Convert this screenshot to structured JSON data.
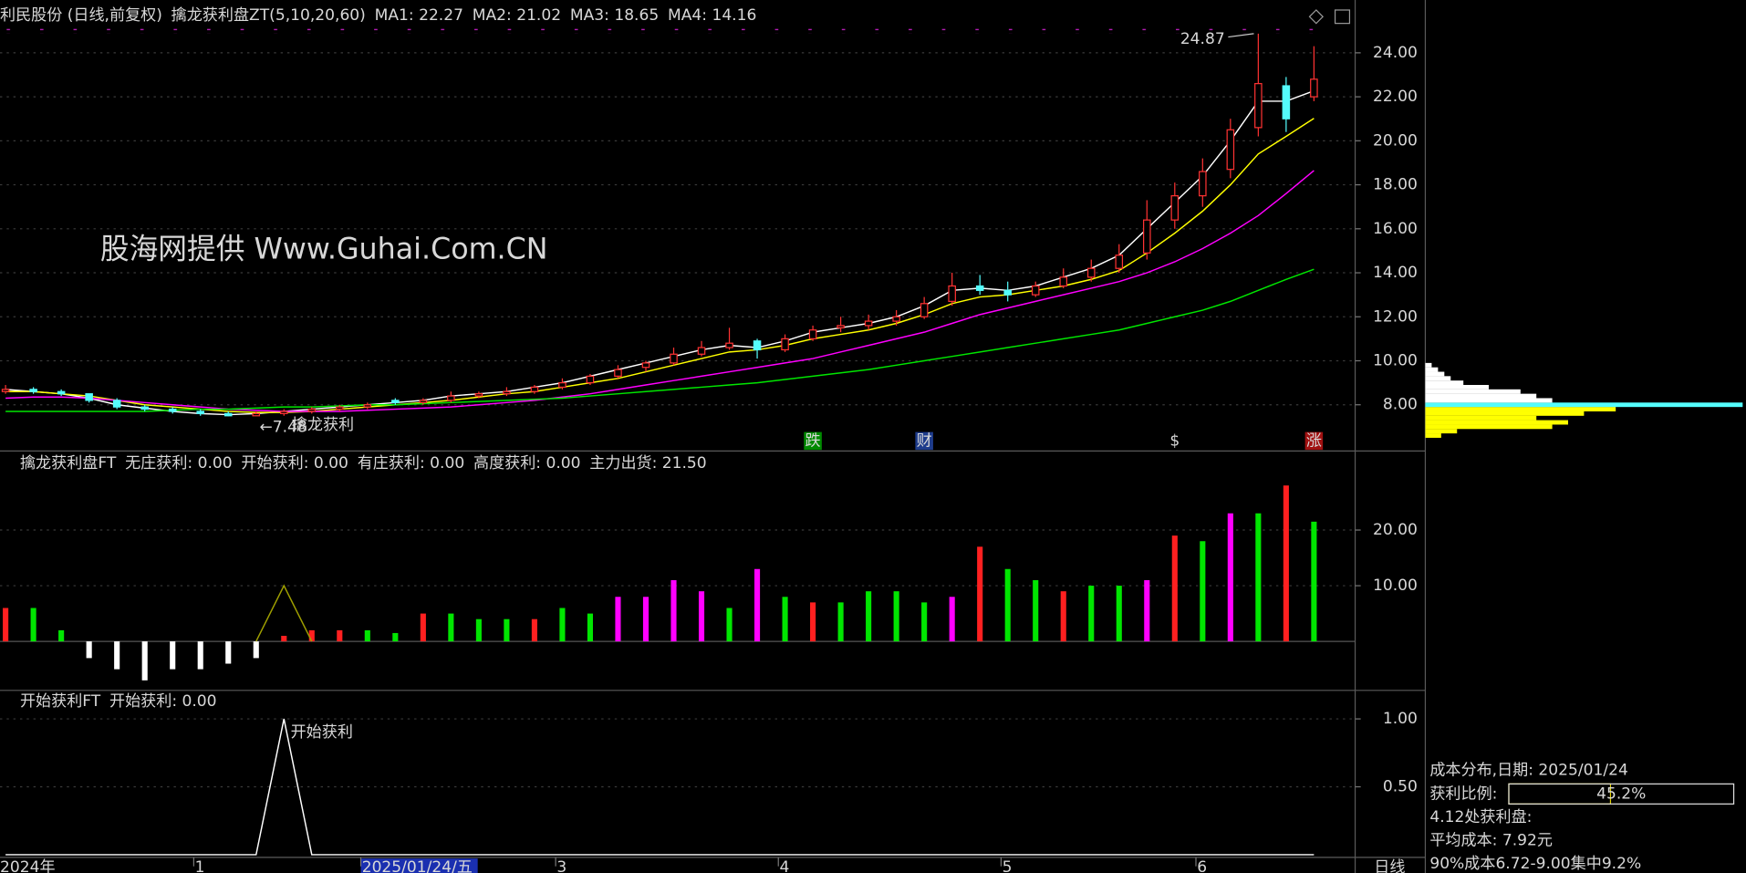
{
  "chart_data": [
    {
      "type": "candlestick",
      "title": "利民股份 (日线,前复权)",
      "indicator": "擒龙获利盘ZT(5,10,20,60)",
      "ohlc": [
        [
          8.6,
          8.9,
          8.5,
          8.7
        ],
        [
          8.7,
          8.8,
          8.5,
          8.6
        ],
        [
          8.6,
          8.7,
          8.4,
          8.5
        ],
        [
          8.5,
          8.5,
          8.1,
          8.2
        ],
        [
          8.2,
          8.3,
          7.8,
          7.9
        ],
        [
          7.9,
          8.0,
          7.7,
          7.8
        ],
        [
          7.8,
          7.9,
          7.6,
          7.7
        ],
        [
          7.7,
          7.8,
          7.5,
          7.6
        ],
        [
          7.6,
          7.7,
          7.48,
          7.5
        ],
        [
          7.5,
          7.7,
          7.5,
          7.6
        ],
        [
          7.6,
          7.8,
          7.5,
          7.7
        ],
        [
          7.7,
          7.9,
          7.6,
          7.8
        ],
        [
          7.8,
          8.0,
          7.7,
          7.9
        ],
        [
          7.9,
          8.1,
          7.8,
          8.0
        ],
        [
          8.2,
          8.3,
          8.0,
          8.1
        ],
        [
          8.1,
          8.3,
          8.0,
          8.2
        ],
        [
          8.2,
          8.6,
          8.1,
          8.4
        ],
        [
          8.4,
          8.6,
          8.3,
          8.5
        ],
        [
          8.5,
          8.8,
          8.4,
          8.6
        ],
        [
          8.6,
          8.9,
          8.5,
          8.8
        ],
        [
          8.8,
          9.2,
          8.7,
          9.0
        ],
        [
          9.0,
          9.4,
          8.9,
          9.3
        ],
        [
          9.3,
          9.8,
          9.2,
          9.6
        ],
        [
          9.7,
          10.0,
          9.5,
          9.9
        ],
        [
          9.9,
          10.6,
          9.8,
          10.3
        ],
        [
          10.3,
          10.9,
          10.2,
          10.6
        ],
        [
          10.6,
          11.5,
          10.5,
          10.8
        ],
        [
          10.9,
          11.0,
          10.1,
          10.5
        ],
        [
          10.5,
          11.2,
          10.4,
          11.0
        ],
        [
          11.0,
          11.6,
          10.9,
          11.4
        ],
        [
          11.5,
          12.0,
          11.3,
          11.6
        ],
        [
          11.6,
          12.1,
          11.4,
          11.8
        ],
        [
          11.8,
          12.3,
          11.6,
          12.0
        ],
        [
          12.0,
          12.9,
          11.9,
          12.6
        ],
        [
          12.7,
          14.0,
          12.5,
          13.4
        ],
        [
          13.4,
          13.9,
          13.0,
          13.2
        ],
        [
          13.2,
          13.6,
          12.7,
          13.0
        ],
        [
          13.0,
          13.6,
          12.9,
          13.4
        ],
        [
          13.4,
          14.2,
          13.3,
          13.8
        ],
        [
          13.8,
          14.6,
          13.6,
          14.2
        ],
        [
          14.2,
          15.3,
          14.0,
          14.8
        ],
        [
          14.9,
          17.3,
          14.6,
          16.4
        ],
        [
          16.4,
          18.1,
          16.0,
          17.5
        ],
        [
          17.5,
          19.2,
          17.0,
          18.6
        ],
        [
          18.7,
          21.0,
          18.3,
          20.5
        ],
        [
          20.6,
          24.87,
          20.2,
          22.6
        ],
        [
          22.5,
          22.9,
          20.4,
          21.0
        ],
        [
          22.0,
          24.3,
          21.8,
          22.8
        ]
      ],
      "up_color": "#ff3232",
      "down_color": "#54fcfc",
      "series": [
        {
          "name": "MA1: 22.27",
          "color": "#ffffff",
          "values": [
            8.7,
            8.6,
            8.5,
            8.3,
            8.0,
            7.85,
            7.7,
            7.6,
            7.55,
            7.6,
            7.7,
            7.8,
            7.9,
            8.0,
            8.1,
            8.2,
            8.4,
            8.5,
            8.6,
            8.8,
            9.0,
            9.3,
            9.6,
            9.9,
            10.2,
            10.5,
            10.7,
            10.6,
            10.9,
            11.3,
            11.5,
            11.7,
            12.0,
            12.5,
            13.2,
            13.3,
            13.2,
            13.4,
            13.8,
            14.2,
            14.8,
            16.0,
            17.2,
            18.4,
            20.0,
            21.8,
            21.8,
            22.27
          ]
        },
        {
          "name": "MA2: 21.02",
          "color": "#ffff00",
          "values": [
            8.6,
            8.6,
            8.5,
            8.4,
            8.2,
            8.0,
            7.9,
            7.8,
            7.7,
            7.65,
            7.65,
            7.7,
            7.8,
            7.9,
            8.0,
            8.1,
            8.2,
            8.35,
            8.5,
            8.6,
            8.8,
            9.0,
            9.2,
            9.5,
            9.8,
            10.1,
            10.4,
            10.5,
            10.7,
            11.0,
            11.2,
            11.4,
            11.7,
            12.1,
            12.6,
            12.9,
            13.0,
            13.2,
            13.4,
            13.7,
            14.1,
            14.9,
            15.8,
            16.8,
            18.0,
            19.4,
            20.2,
            21.02
          ]
        },
        {
          "name": "MA3: 18.65",
          "color": "#ff00ff",
          "values": [
            8.3,
            8.35,
            8.35,
            8.3,
            8.2,
            8.1,
            8.0,
            7.9,
            7.8,
            7.75,
            7.7,
            7.7,
            7.7,
            7.75,
            7.8,
            7.85,
            7.9,
            8.0,
            8.1,
            8.2,
            8.35,
            8.5,
            8.7,
            8.9,
            9.1,
            9.3,
            9.5,
            9.7,
            9.9,
            10.1,
            10.4,
            10.7,
            11.0,
            11.3,
            11.7,
            12.1,
            12.4,
            12.7,
            13.0,
            13.3,
            13.6,
            14.0,
            14.5,
            15.1,
            15.8,
            16.6,
            17.6,
            18.65
          ]
        },
        {
          "name": "MA4: 14.16",
          "color": "#00e600",
          "values": [
            7.7,
            7.7,
            7.7,
            7.7,
            7.7,
            7.7,
            7.75,
            7.8,
            7.8,
            7.85,
            7.9,
            7.9,
            7.95,
            8.0,
            8.0,
            8.05,
            8.1,
            8.15,
            8.2,
            8.25,
            8.3,
            8.4,
            8.5,
            8.6,
            8.7,
            8.8,
            8.9,
            9.0,
            9.15,
            9.3,
            9.45,
            9.6,
            9.8,
            10.0,
            10.2,
            10.4,
            10.6,
            10.8,
            11.0,
            11.2,
            11.4,
            11.7,
            12.0,
            12.3,
            12.7,
            13.2,
            13.7,
            14.16
          ]
        }
      ],
      "ylim": [
        5.9,
        26.4
      ],
      "yticks": [
        {
          "value": 8,
          "label": "8.00"
        },
        {
          "value": 10,
          "label": "10.00"
        },
        {
          "value": 12,
          "label": "12.00"
        },
        {
          "value": 14,
          "label": "14.00"
        },
        {
          "value": 16,
          "label": "16.00"
        },
        {
          "value": 18,
          "label": "18.00"
        },
        {
          "value": 20,
          "label": "20.00"
        },
        {
          "value": 22,
          "label": "22.00"
        },
        {
          "value": 24,
          "label": "24.00"
        }
      ],
      "grid": true,
      "high_label": "24.87",
      "high_index": 45,
      "low_label": "←7.48",
      "low_index": 8,
      "signal_text": "擒龙获利",
      "watermark": "股海网提供 Www.Guhai.Com.CN",
      "markers": [
        {
          "text": "跌",
          "index": 29,
          "color": "#008a00"
        },
        {
          "text": "财",
          "index": 33,
          "color": "#1e3c8c"
        },
        {
          "text": "$",
          "index": 42,
          "color": "#000000"
        },
        {
          "text": "涨",
          "index": 47,
          "color": "#a01010"
        }
      ]
    },
    {
      "type": "bar",
      "title": "擒龙获利盘FT",
      "legend": [
        {
          "text": "无庄获利: 0.00",
          "color": "#ffffff"
        },
        {
          "text": "开始获利: 0.00",
          "color": "#a0a000"
        },
        {
          "text": "有庄获利: 0.00",
          "color": "#ff3232"
        },
        {
          "text": "高度获利: 0.00",
          "color": "#ff00ff"
        },
        {
          "text": "主力出货: 21.50",
          "color": "#00e600"
        }
      ],
      "values": [
        6,
        6,
        2,
        -3,
        -5,
        -7,
        -5,
        -5,
        -4,
        -3,
        1,
        2,
        2,
        2,
        1.5,
        5,
        5,
        4,
        4,
        4,
        6,
        5,
        8,
        8,
        11,
        9,
        6,
        13,
        8,
        7,
        7,
        9,
        9,
        7,
        8,
        17,
        13,
        11,
        9,
        10,
        10,
        11,
        19,
        18,
        23,
        23,
        28,
        21.5
      ],
      "colors": [
        "#ff2020",
        "#00e600",
        "#00e600",
        "#ffffff",
        "#ffffff",
        "#ffffff",
        "#ffffff",
        "#ffffff",
        "#ffffff",
        "#ffffff",
        "#ff2020",
        "#ff2020",
        "#ff2020",
        "#00e600",
        "#00e600",
        "#ff2020",
        "#00e600",
        "#00e600",
        "#00e600",
        "#ff2020",
        "#00e600",
        "#00e600",
        "#ff00ff",
        "#ff00ff",
        "#ff00ff",
        "#ff00ff",
        "#00e600",
        "#ff00ff",
        "#00e600",
        "#ff2020",
        "#00e600",
        "#00e600",
        "#00e600",
        "#00e600",
        "#ff00ff",
        "#ff2020",
        "#00e600",
        "#00e600",
        "#ff2020",
        "#00e600",
        "#00e600",
        "#ff00ff",
        "#ff2020",
        "#00e600",
        "#ff00ff",
        "#00e600",
        "#ff2020",
        "#00e600"
      ],
      "line": {
        "color": "#a0a000",
        "values": [
          null,
          null,
          null,
          null,
          null,
          null,
          null,
          null,
          null,
          0,
          10,
          0,
          null,
          null,
          null,
          null,
          null,
          null,
          null,
          null,
          null,
          null,
          null,
          null,
          null,
          null,
          null,
          null,
          null,
          null,
          null,
          null,
          null,
          null,
          null,
          null,
          null,
          null,
          null,
          null,
          null,
          null,
          null,
          null,
          null,
          null,
          null,
          null
        ]
      },
      "ylim": [
        -8.8,
        34.2
      ],
      "yticks": [
        {
          "value": 10,
          "label": "10.00"
        },
        {
          "value": 20,
          "label": "20.00"
        }
      ],
      "grid": true
    },
    {
      "type": "line",
      "title": "开始获利FT",
      "legend": [
        {
          "text": "开始获利: 0.00",
          "color": "#ffffff"
        }
      ],
      "values": [
        0,
        0,
        0,
        0,
        0,
        0,
        0,
        0,
        0,
        0,
        1,
        0,
        0,
        0,
        0,
        0,
        0,
        0,
        0,
        0,
        0,
        0,
        0,
        0,
        0,
        0,
        0,
        0,
        0,
        0,
        0,
        0,
        0,
        0,
        0,
        0,
        0,
        0,
        0,
        0,
        0,
        0,
        0,
        0,
        0,
        0,
        0,
        0
      ],
      "color": "#ffffff",
      "signal_text": "开始获利",
      "signal_index": 10,
      "categories": [
        "2024年",
        null,
        null,
        null,
        null,
        null,
        null,
        "1",
        null,
        null,
        null,
        null,
        null,
        "2025/01/24/五",
        null,
        null,
        null,
        null,
        null,
        null,
        "3",
        null,
        null,
        null,
        null,
        null,
        null,
        null,
        "4",
        null,
        null,
        null,
        null,
        null,
        null,
        null,
        "5",
        null,
        null,
        null,
        null,
        null,
        null,
        "6",
        null,
        null,
        null,
        null
      ],
      "highlight_index": 13,
      "period": "日线",
      "ylim": [
        -0.02,
        1.21
      ],
      "yticks": [
        {
          "value": 0.5,
          "label": "0.50"
        },
        {
          "value": 1,
          "label": "1.00"
        }
      ],
      "grid": true
    },
    {
      "type": "hbar",
      "title": "成本分布,日期: 2025/01/24",
      "prices": [
        6.6,
        6.8,
        7.0,
        7.2,
        7.4,
        7.6,
        7.8,
        8.0,
        8.2,
        8.4,
        8.6,
        8.8,
        9.0,
        9.2,
        9.4,
        9.6,
        9.8
      ],
      "values": [
        5,
        10,
        40,
        45,
        35,
        50,
        60,
        100,
        40,
        35,
        30,
        20,
        12,
        8,
        6,
        4,
        2
      ],
      "colors": [
        "#ffff00",
        "#ffff00",
        "#ffff00",
        "#ffff00",
        "#ffff00",
        "#ffff00",
        "#ffff00",
        "#54fcfc",
        "#ffffff",
        "#ffffff",
        "#ffffff",
        "#ffffff",
        "#ffffff",
        "#ffffff",
        "#ffffff",
        "#ffffff",
        "#ffffff"
      ],
      "ratio_title": "获利比例:",
      "ratio": 45.2,
      "ratio_label": "45.2%",
      "lines": [
        "4.12处获利盘:",
        "平均成本: 7.92元",
        "90%成本6.72-9.00集中9.2%"
      ]
    }
  ]
}
